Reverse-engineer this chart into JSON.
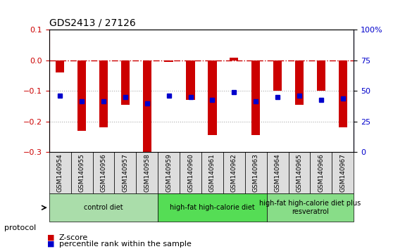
{
  "title": "GDS2413 / 27126",
  "samples": [
    "GSM140954",
    "GSM140955",
    "GSM140956",
    "GSM140957",
    "GSM140958",
    "GSM140959",
    "GSM140960",
    "GSM140961",
    "GSM140962",
    "GSM140963",
    "GSM140964",
    "GSM140965",
    "GSM140966",
    "GSM140967"
  ],
  "zscore": [
    -0.04,
    -0.23,
    -0.22,
    -0.145,
    -0.3,
    -0.005,
    -0.13,
    -0.245,
    0.01,
    -0.245,
    -0.1,
    -0.145,
    -0.1,
    -0.22
  ],
  "percentile": [
    -0.115,
    -0.135,
    -0.135,
    -0.12,
    -0.14,
    -0.115,
    -0.12,
    -0.13,
    -0.105,
    -0.135,
    -0.12,
    -0.115,
    -0.13,
    -0.125
  ],
  "bar_color": "#cc0000",
  "dot_color": "#0000cc",
  "ylim": [
    -0.3,
    0.1
  ],
  "yticks_left": [
    -0.3,
    -0.2,
    -0.1,
    0.0,
    0.1
  ],
  "yticks_right": [
    0,
    25,
    50,
    75,
    100
  ],
  "yticks_right_vals": [
    -0.3,
    -0.2,
    -0.1,
    0.0,
    0.1
  ],
  "groups": [
    {
      "label": "control diet",
      "start": 0,
      "end": 4,
      "color": "#aaddaa"
    },
    {
      "label": "high-fat high-calorie diet",
      "start": 5,
      "end": 9,
      "color": "#55dd55"
    },
    {
      "label": "high-fat high-calorie diet plus\nresveratrol",
      "start": 10,
      "end": 13,
      "color": "#88dd88"
    }
  ],
  "legend_zscore": "Z-score",
  "legend_pct": "percentile rank within the sample",
  "protocol_label": "protocol",
  "grid_color": "#aaaaaa",
  "ref_line_color": "#cc0000",
  "background_color": "#ffffff"
}
